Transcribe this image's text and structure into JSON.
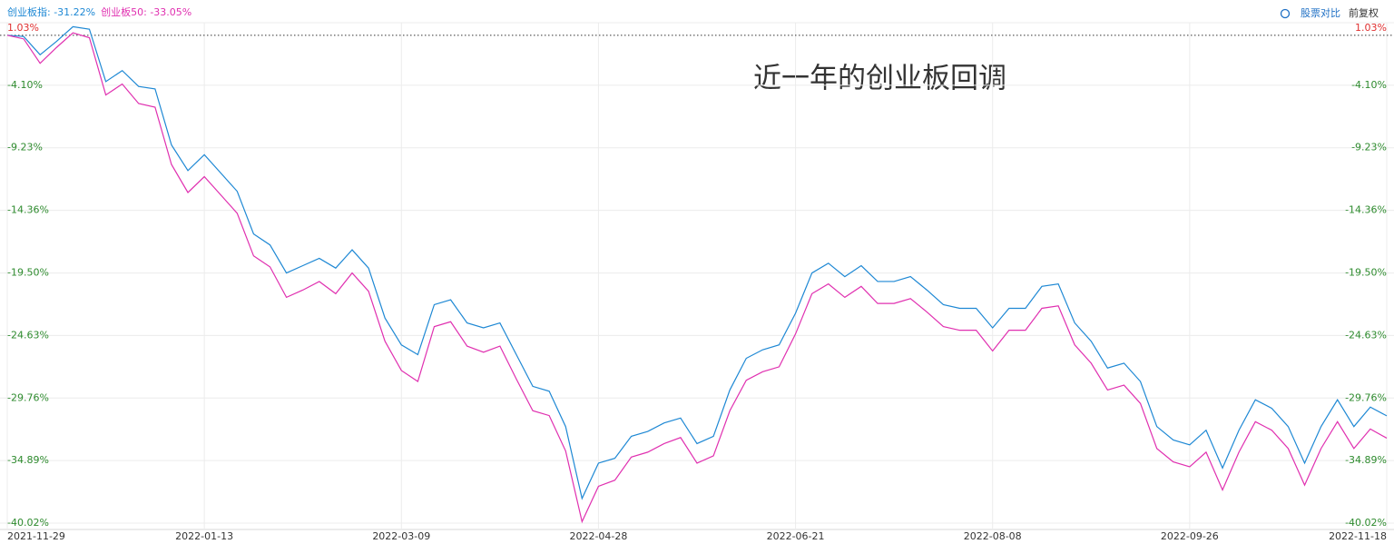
{
  "chart_data": {
    "type": "line",
    "annotation": "近一年的创业板回调",
    "categories": [
      "2021-11-29",
      null,
      null,
      null,
      null,
      null,
      null,
      null,
      null,
      null,
      null,
      null,
      "2022-01-13",
      null,
      null,
      null,
      null,
      null,
      null,
      null,
      null,
      null,
      null,
      null,
      "2022-03-09",
      null,
      null,
      null,
      null,
      null,
      null,
      null,
      null,
      null,
      null,
      null,
      "2022-04-28",
      null,
      null,
      null,
      null,
      null,
      null,
      null,
      null,
      null,
      null,
      null,
      "2022-06-21",
      null,
      null,
      null,
      null,
      null,
      null,
      null,
      null,
      null,
      null,
      null,
      "2022-08-08",
      null,
      null,
      null,
      null,
      null,
      null,
      null,
      null,
      null,
      null,
      null,
      "2022-09-26",
      null,
      null,
      null,
      null,
      null,
      null,
      null,
      null,
      null,
      null,
      null,
      "2022-11-18"
    ],
    "series": [
      {
        "name": "创业板指: -31.22%",
        "color": "#1e88d4",
        "values": [
          0,
          -0.1,
          -1.6,
          -0.5,
          0.7,
          0.5,
          -3.8,
          -2.9,
          -4.2,
          -4.4,
          -9.0,
          -11.1,
          -9.8,
          -11.3,
          -12.8,
          -16.3,
          -17.2,
          -19.5,
          -18.9,
          -18.3,
          -19.1,
          -17.6,
          -19.1,
          -23.2,
          -25.4,
          -26.2,
          -22.1,
          -21.7,
          -23.6,
          -24.0,
          -23.6,
          -26.2,
          -28.8,
          -29.2,
          -32.1,
          -38.0,
          -35.1,
          -34.7,
          -32.9,
          -32.5,
          -31.8,
          -31.4,
          -33.5,
          -32.9,
          -29.1,
          -26.5,
          -25.8,
          -25.4,
          -22.8,
          -19.5,
          -18.7,
          -19.8,
          -18.9,
          -20.2,
          -20.2,
          -19.8,
          -20.9,
          -22.1,
          -22.4,
          -22.4,
          -24.0,
          -22.4,
          -22.4,
          -20.6,
          -20.4,
          -23.6,
          -25.1,
          -27.3,
          -26.9,
          -28.4,
          -32.1,
          -33.2,
          -33.6,
          -32.4,
          -35.5,
          -32.4,
          -29.9,
          -30.6,
          -32.1,
          -35.1,
          -32.1,
          -29.9,
          -32.1,
          -30.5,
          -31.22
        ]
      },
      {
        "name": "创业板50: -33.05%",
        "color": "#e030b0",
        "values": [
          0,
          -0.3,
          -2.3,
          -1.0,
          0.2,
          -0.2,
          -4.9,
          -4.0,
          -5.6,
          -5.9,
          -10.6,
          -12.9,
          -11.6,
          -13.1,
          -14.6,
          -18.1,
          -19.0,
          -21.5,
          -20.9,
          -20.2,
          -21.2,
          -19.5,
          -21.0,
          -25.1,
          -27.5,
          -28.4,
          -23.9,
          -23.5,
          -25.5,
          -26.0,
          -25.5,
          -28.2,
          -30.8,
          -31.2,
          -34.1,
          -39.9,
          -37.0,
          -36.5,
          -34.6,
          -34.2,
          -33.5,
          -33.0,
          -35.1,
          -34.5,
          -30.8,
          -28.3,
          -27.6,
          -27.2,
          -24.5,
          -21.2,
          -20.4,
          -21.5,
          -20.6,
          -22.0,
          -22.0,
          -21.6,
          -22.7,
          -23.9,
          -24.2,
          -24.2,
          -25.9,
          -24.2,
          -24.2,
          -22.4,
          -22.2,
          -25.4,
          -26.9,
          -29.1,
          -28.7,
          -30.2,
          -33.9,
          -35.0,
          -35.4,
          -34.2,
          -37.3,
          -34.2,
          -31.7,
          -32.4,
          -33.9,
          -36.9,
          -33.9,
          -31.7,
          -33.9,
          -32.3,
          -33.05
        ]
      }
    ],
    "ylim": [
      -40.02,
      1.03
    ],
    "yticks": [
      {
        "value": 1.03,
        "label": "1.03%"
      },
      {
        "value": -4.1,
        "label": "-4.10%"
      },
      {
        "value": -9.23,
        "label": "-9.23%"
      },
      {
        "value": -14.36,
        "label": "-14.36%"
      },
      {
        "value": -19.5,
        "label": "-19.50%"
      },
      {
        "value": -24.63,
        "label": "-24.63%"
      },
      {
        "value": -29.76,
        "label": "-29.76%"
      },
      {
        "value": -34.89,
        "label": "-34.89%"
      },
      {
        "value": -40.02,
        "label": "-40.02%"
      }
    ],
    "grid": true
  },
  "controls": [
    "股票对比",
    "前复权"
  ]
}
